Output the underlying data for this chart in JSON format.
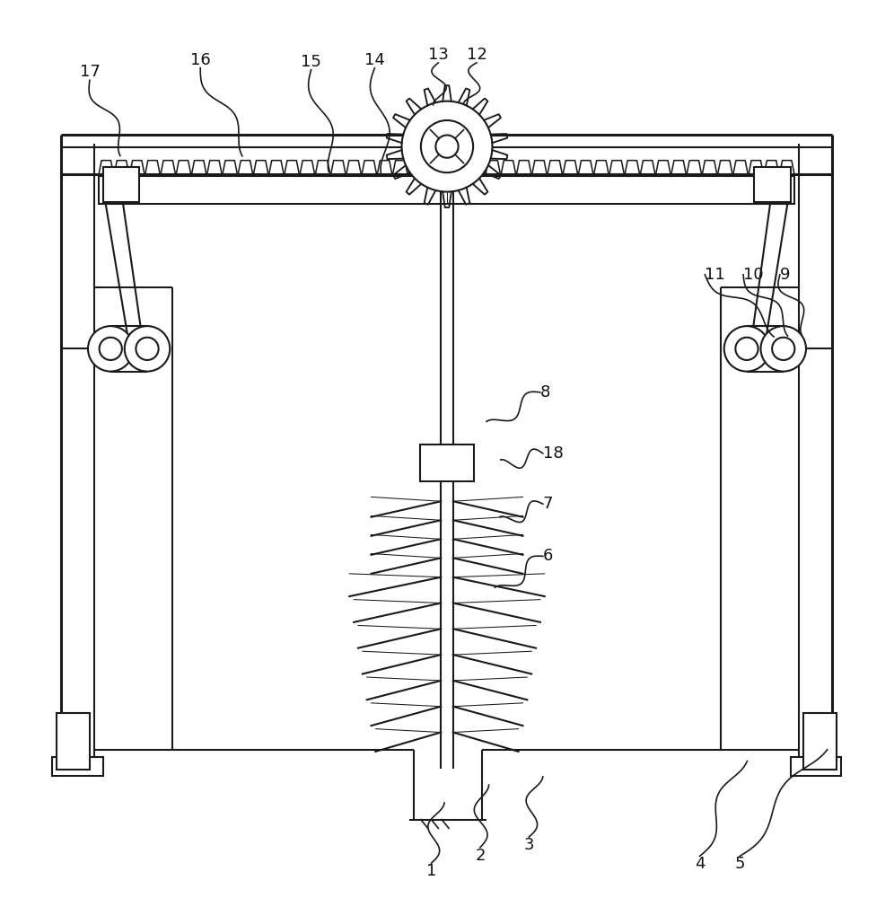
{
  "bg_color": "#ffffff",
  "line_color": "#1a1a1a",
  "lw": 1.5,
  "lw_thick": 2.2,
  "lw_thin": 0.9,
  "label_fontsize": 13,
  "label_color": "#111111"
}
